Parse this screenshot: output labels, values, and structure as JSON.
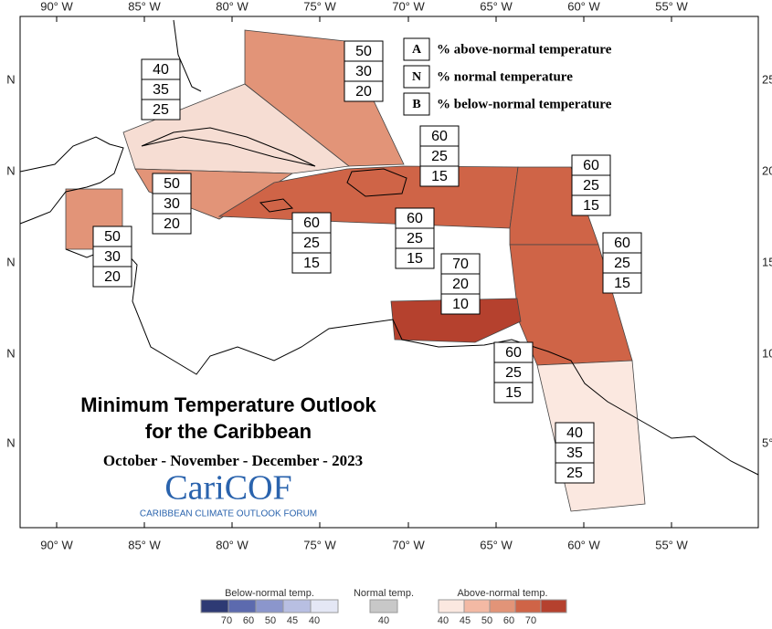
{
  "map": {
    "lon_labels_top": [
      "90° W",
      "85° W",
      "80° W",
      "75° W",
      "70° W",
      "65° W",
      "60° W",
      "55° W"
    ],
    "lon_labels_bottom": [
      "90° W",
      "85° W",
      "80° W",
      "75° W",
      "70° W",
      "65° W",
      "60° W",
      "55° W"
    ],
    "lat_labels_left": [
      "N",
      "N",
      "N",
      "N",
      "N"
    ],
    "lat_labels_right": [
      "25",
      "20",
      "15",
      "10",
      "5°"
    ]
  },
  "key": [
    {
      "letter": "A",
      "text": "% above-normal temperature"
    },
    {
      "letter": "N",
      "text": "% normal temperature"
    },
    {
      "letter": "B",
      "text": "% below-normal temperature"
    }
  ],
  "regions": [
    {
      "probabilities": [
        50,
        30,
        20
      ]
    },
    {
      "probabilities": [
        40,
        35,
        25
      ]
    },
    {
      "probabilities": [
        50,
        30,
        20
      ]
    },
    {
      "probabilities": [
        50,
        30,
        20
      ]
    },
    {
      "probabilities": [
        60,
        25,
        15
      ]
    },
    {
      "probabilities": [
        60,
        25,
        15
      ]
    },
    {
      "probabilities": [
        60,
        25,
        15
      ]
    },
    {
      "probabilities": [
        60,
        25,
        15
      ]
    },
    {
      "probabilities": [
        60,
        25,
        15
      ]
    },
    {
      "probabilities": [
        70,
        20,
        10
      ]
    },
    {
      "probabilities": [
        60,
        25,
        15
      ]
    },
    {
      "probabilities": [
        40,
        35,
        25
      ]
    }
  ],
  "title": {
    "line1": "Minimum Temperature Outlook",
    "line2": "for the Caribbean",
    "period": "October - November - December - 2023",
    "logo": "CariCOF",
    "logo_sub": "CARIBBEAN CLIMATE OUTLOOK FORUM"
  },
  "color_scale": {
    "below_title": "Below-normal temp.",
    "below_ticks": [
      70,
      60,
      50,
      45,
      40
    ],
    "normal_title": "Normal temp.",
    "normal_ticks": [
      40
    ],
    "above_title": "Above-normal temp.",
    "above_ticks": [
      40,
      45,
      50,
      60,
      70
    ]
  }
}
